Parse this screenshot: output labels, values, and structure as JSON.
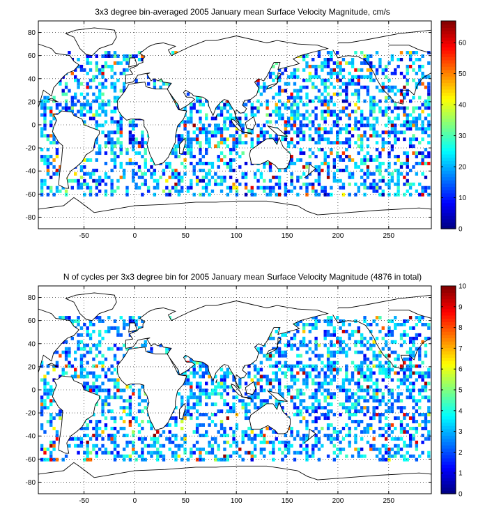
{
  "chart_data": [
    {
      "type": "heatmap",
      "title": "3x3 degree bin-averaged 2005 January mean Surface Velocity Magnitude, cm/s",
      "xlabel": "",
      "ylabel": "",
      "xlim": [
        -95,
        292
      ],
      "ylim": [
        -90,
        90
      ],
      "xticks": [
        -50,
        0,
        50,
        100,
        150,
        200,
        250
      ],
      "yticks": [
        -80,
        -60,
        -40,
        -20,
        0,
        20,
        40,
        60,
        80
      ],
      "grid": true,
      "bin_size_deg": 3,
      "colorbar": {
        "range": [
          0,
          67
        ],
        "ticks": [
          0,
          10,
          20,
          30,
          40,
          50,
          60
        ],
        "colormap": "jet"
      },
      "seed": 11
    },
    {
      "type": "heatmap",
      "title": "N of cycles per 3x3 degree bin for 2005 January mean Surface Velocity Magnitude (4876 in total)",
      "xlabel": "",
      "ylabel": "",
      "xlim": [
        -95,
        292
      ],
      "ylim": [
        -90,
        90
      ],
      "xticks": [
        -50,
        0,
        50,
        100,
        150,
        200,
        250
      ],
      "yticks": [
        -80,
        -60,
        -40,
        -20,
        0,
        20,
        40,
        60,
        80
      ],
      "grid": true,
      "bin_size_deg": 3,
      "total_cycles": 4876,
      "colorbar": {
        "range": [
          0,
          10
        ],
        "ticks": [
          0,
          1,
          2,
          3,
          4,
          5,
          6,
          7,
          8,
          9,
          10
        ],
        "colormap": "jet"
      },
      "seed": 29
    }
  ]
}
